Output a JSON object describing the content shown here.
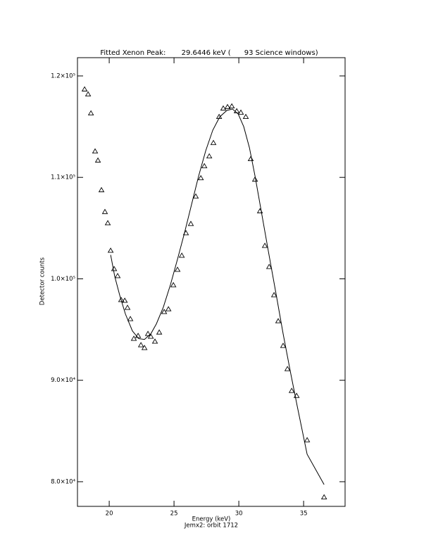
{
  "chart_data": {
    "type": "scatter",
    "title": "Fitted Xenon Peak:       29.6446 keV (      93 Science windows)",
    "x_label": "Energy (keV)",
    "subtitle": "Jemx2: orbit 1712",
    "y_label": "Detector counts",
    "xlim": [
      17.55,
      38.2
    ],
    "xticks": [
      20,
      25,
      30,
      35
    ],
    "ylim": [
      77570,
      121800
    ],
    "yticks": [
      {
        "value": 80000,
        "label": "8.0×10⁴"
      },
      {
        "value": 90000,
        "label": "9.0×10⁴"
      },
      {
        "value": 100000,
        "label": "1.0×10⁵"
      },
      {
        "value": 110000,
        "label": "1.1×10⁵"
      },
      {
        "value": 120000,
        "label": "1.2×10⁵"
      }
    ],
    "series": [
      {
        "style": "markers",
        "color": "#000000",
        "x": [
          18.1,
          18.37,
          18.59,
          18.91,
          19.13,
          19.4,
          19.67,
          19.89,
          20.11,
          20.38,
          20.65,
          20.92,
          21.2,
          21.41,
          21.63,
          21.9,
          22.23,
          22.45,
          22.72,
          22.99,
          23.21,
          23.53,
          23.86,
          24.24,
          24.57,
          24.95,
          25.27,
          25.6,
          25.92,
          26.3,
          26.68,
          27.07,
          27.34,
          27.72,
          28.04,
          28.48,
          28.8,
          29.13,
          29.46,
          29.84,
          30.16,
          30.54,
          30.92,
          31.25,
          31.63,
          32.01,
          32.34,
          32.72,
          33.04,
          33.42,
          33.75,
          34.08,
          34.46,
          35.27,
          36.58
        ],
        "values": [
          118680,
          118190,
          116320,
          112570,
          111670,
          108750,
          106600,
          105490,
          102780,
          100970,
          100280,
          97920,
          97850,
          97150,
          96040,
          94100,
          94380,
          93470,
          93190,
          94580,
          94310,
          93820,
          94720,
          96740,
          97010,
          99380,
          100900,
          102290,
          104510,
          105420,
          108120,
          109930,
          111110,
          112080,
          113400,
          115970,
          116800,
          116940,
          117010,
          116530,
          116390,
          115970,
          111810,
          109790,
          106670,
          103260,
          101180,
          98400,
          95830,
          93400,
          91110,
          88960,
          88470,
          84100,
          78470
        ]
      },
      {
        "style": "line",
        "color": "#000000",
        "x": [
          20.11,
          20.43,
          20.82,
          21.25,
          21.79,
          22.28,
          22.72,
          23.21,
          23.64,
          24.18,
          24.73,
          25.27,
          25.82,
          26.36,
          26.9,
          27.45,
          27.99,
          28.53,
          29.08,
          29.51,
          29.95,
          30.38,
          30.82,
          31.25,
          31.79,
          32.34,
          32.88,
          33.42,
          33.97,
          34.51,
          35.27,
          36.58
        ],
        "values": [
          102360,
          100210,
          98330,
          96530,
          94860,
          94100,
          94030,
          94580,
          95560,
          97220,
          99440,
          101940,
          104580,
          107360,
          110140,
          112640,
          114650,
          115970,
          116600,
          116740,
          116250,
          115000,
          112920,
          110140,
          106250,
          102290,
          98470,
          94580,
          90900,
          87430,
          82710,
          79720
        ]
      }
    ]
  }
}
